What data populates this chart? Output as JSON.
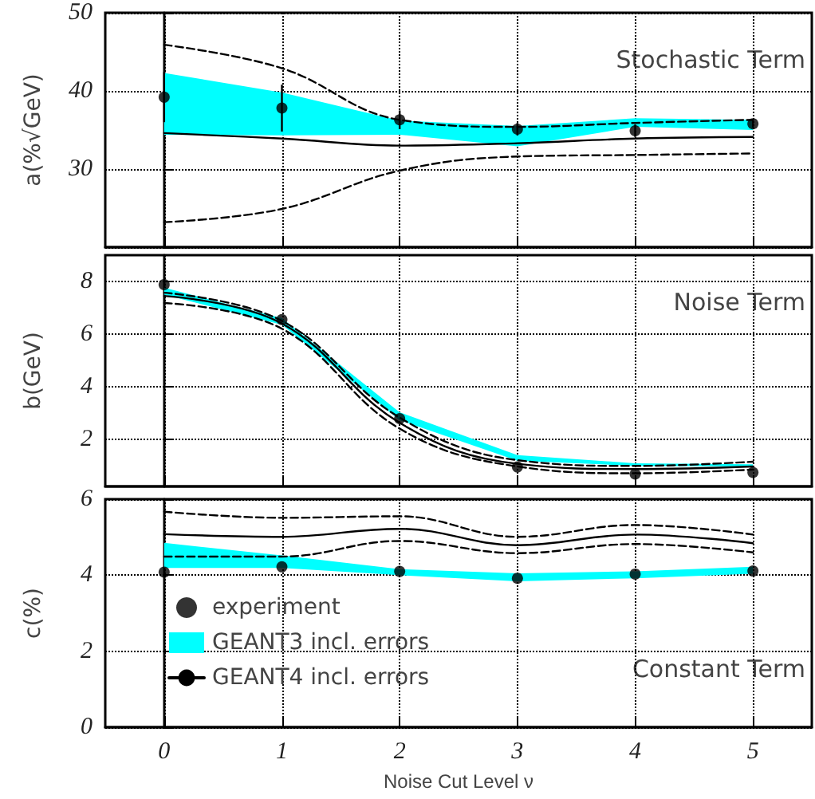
{
  "chart_data": [
    {
      "type": "line",
      "ylabel": "a(%√GeV)",
      "annotations": [
        "Stochastic Term"
      ],
      "x": [
        0,
        1,
        2,
        3,
        4,
        5
      ],
      "xlim": [
        -0.5,
        5.5
      ],
      "xticks": [
        0,
        1,
        2,
        3,
        4,
        5
      ],
      "ylim": [
        20,
        50
      ],
      "yticks": [
        {
          "value": 20,
          "label": null
        },
        30,
        40,
        50
      ],
      "grid": true,
      "tick_labels": "y",
      "series": [
        {
          "type": "area",
          "color": "#00ffff",
          "values": [
            null,
            null,
            null,
            null,
            null,
            null
          ],
          "lower": [
            34.4,
            34.3,
            34.4,
            32.9,
            35.4,
            35.0
          ],
          "upper": [
            42.3,
            39.8,
            36.2,
            35.5,
            36.5,
            36.3
          ]
        },
        {
          "type": "line",
          "color": "#000000",
          "line_style": "solid",
          "values": [
            34.6,
            33.9,
            33.0,
            33.3,
            33.9,
            34.1
          ]
        },
        {
          "type": "line",
          "color": "#000000",
          "line_style": "dashed",
          "values": [
            23.2,
            24.9,
            29.8,
            31.6,
            31.8,
            32.0
          ]
        },
        {
          "type": "line",
          "color": "#000000",
          "line_style": "dashed",
          "values": [
            45.9,
            42.9,
            36.3,
            35.4,
            35.9,
            36.3
          ]
        },
        {
          "type": "scatter",
          "color": "#000000",
          "marker": "circle",
          "values": [
            39.2,
            37.8,
            36.3,
            35.1,
            34.9,
            35.8
          ],
          "errors": [
            3.2,
            3.0,
            1.2,
            0.8,
            0.8,
            0.5
          ]
        }
      ]
    },
    {
      "type": "line",
      "ylabel": "b(GeV)",
      "annotations": [
        "Noise Term"
      ],
      "x": [
        0,
        1,
        2,
        3,
        4,
        5
      ],
      "xlim": [
        -0.5,
        5.5
      ],
      "xticks": [
        0,
        1,
        2,
        3,
        4,
        5
      ],
      "ylim": [
        0.2,
        9
      ],
      "yticks": [
        2,
        4,
        6,
        8
      ],
      "grid": true,
      "tick_labels": "y",
      "series": [
        {
          "type": "area",
          "color": "#00ffff",
          "values": [
            null,
            null,
            null,
            null,
            null,
            null
          ],
          "lower": [
            7.5,
            6.35,
            2.72,
            1.18,
            0.98,
            0.96
          ],
          "upper": [
            7.76,
            6.6,
            3.02,
            1.39,
            1.08,
            1.04
          ]
        },
        {
          "type": "line",
          "color": "#000000",
          "line_style": "solid",
          "values": [
            7.45,
            6.4,
            2.62,
            1.06,
            0.86,
            0.96
          ]
        },
        {
          "type": "line",
          "color": "#000000",
          "line_style": "dashed",
          "values": [
            7.18,
            6.2,
            2.4,
            0.96,
            0.7,
            0.84
          ]
        },
        {
          "type": "line",
          "color": "#000000",
          "line_style": "dashed",
          "values": [
            7.57,
            6.5,
            2.82,
            1.2,
            0.98,
            1.14
          ]
        },
        {
          "type": "scatter",
          "color": "#000000",
          "marker": "circle",
          "values": [
            7.88,
            6.55,
            2.78,
            0.94,
            0.67,
            0.73
          ]
        }
      ]
    },
    {
      "type": "line",
      "ylabel": "c(%)",
      "xlabel": "Noise Cut Level ν",
      "annotations": [
        "Constant Term"
      ],
      "x": [
        0,
        1,
        2,
        3,
        4,
        5
      ],
      "xlim": [
        -0.5,
        5.5
      ],
      "xticks": [
        0,
        1,
        2,
        3,
        4,
        5
      ],
      "ylim": [
        0,
        6
      ],
      "yticks": [
        0,
        2,
        4,
        6
      ],
      "grid": true,
      "legend": "bottom left",
      "series": [
        {
          "name": "experiment",
          "type": "scatter",
          "color": "#000000",
          "marker": "circle",
          "values": [
            4.08,
            4.22,
            4.1,
            3.92,
            4.03,
            4.11
          ]
        },
        {
          "name": "GEANT3 incl. errors",
          "type": "area",
          "color": "#00ffff",
          "values": [
            null,
            null,
            null,
            null,
            null,
            null
          ],
          "lower": [
            4.19,
            4.19,
            4.0,
            3.84,
            3.92,
            4.04
          ],
          "upper": [
            4.85,
            4.52,
            4.16,
            4.05,
            4.1,
            4.22
          ]
        },
        {
          "name": "GEANT4 incl. errors",
          "type": "line",
          "color": "#000000",
          "line_style": "solid",
          "values": [
            5.08,
            5.01,
            5.22,
            4.79,
            5.07,
            4.84
          ]
        },
        {
          "type": "line",
          "color": "#000000",
          "line_style": "dashed",
          "values": [
            4.49,
            4.49,
            4.9,
            4.58,
            4.82,
            4.6
          ]
        },
        {
          "type": "line",
          "color": "#000000",
          "line_style": "dashed",
          "values": [
            5.67,
            5.51,
            5.55,
            5.01,
            5.32,
            5.07
          ]
        }
      ]
    }
  ]
}
